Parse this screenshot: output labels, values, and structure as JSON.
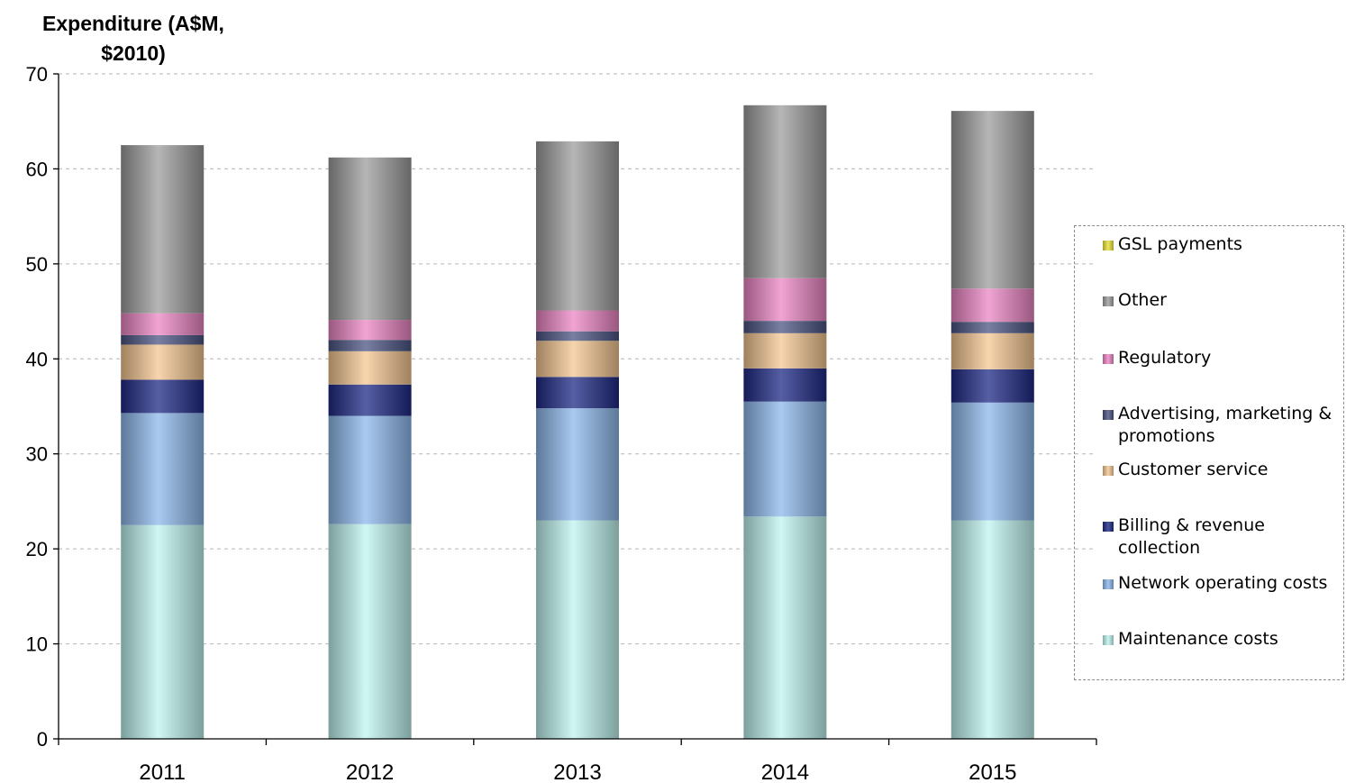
{
  "chart_data": {
    "type": "bar",
    "stacked": true,
    "ylabel": "Expenditure (A$M, $2010)",
    "ylim": [
      0,
      70
    ],
    "yticks": [
      0,
      10,
      20,
      30,
      40,
      50,
      60,
      70
    ],
    "categories": [
      "2011",
      "2012",
      "2013",
      "2014",
      "2015"
    ],
    "grid": true,
    "legend_position": "right",
    "series": [
      {
        "name": "Maintenance costs",
        "color": "#bff4f0",
        "values": [
          22.5,
          22.6,
          23.0,
          23.4,
          23.0
        ]
      },
      {
        "name": "Network operating costs",
        "color": "#8eb8ec",
        "values": [
          11.8,
          11.4,
          11.8,
          12.1,
          12.4
        ]
      },
      {
        "name": "Billing & revenue collection",
        "color": "#1e2a86",
        "values": [
          3.5,
          3.3,
          3.3,
          3.5,
          3.5
        ]
      },
      {
        "name": "Customer service",
        "color": "#f4c792",
        "values": [
          3.7,
          3.5,
          3.8,
          3.7,
          3.8
        ]
      },
      {
        "name": "Advertising, marketing & promotions",
        "color": "#4c5482",
        "values": [
          1.0,
          1.2,
          1.0,
          1.3,
          1.2
        ]
      },
      {
        "name": "Regulatory",
        "color": "#ec86c4",
        "values": [
          2.3,
          2.1,
          2.2,
          4.5,
          3.5
        ]
      },
      {
        "name": "Other",
        "color": "#9d9d9d",
        "values": [
          17.7,
          17.1,
          17.8,
          18.2,
          18.7
        ]
      },
      {
        "name": "GSL payments",
        "color": "#e9e23c",
        "values": [
          0,
          0,
          0,
          0,
          0
        ]
      }
    ],
    "legend_order": [
      "GSL payments",
      "Other",
      "Regulatory",
      "Advertising, marketing & promotions",
      "Customer service",
      "Billing & revenue collection",
      "Network operating costs",
      "Maintenance costs"
    ]
  }
}
